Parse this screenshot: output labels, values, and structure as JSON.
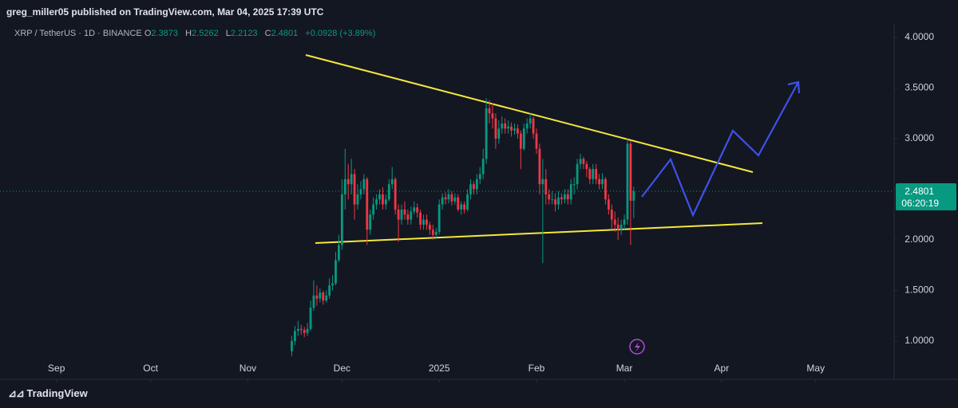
{
  "header": {
    "title": "greg_miller05 published on TradingView.com, Mar 04, 2025 17:39 UTC"
  },
  "chart_data": {
    "type": "candlestick",
    "symbol": "XRP / TetherUS · 1D · BINANCE",
    "ohlc_labels": [
      "O",
      "H",
      "L",
      "C"
    ],
    "change": "+0.0928 (+3.89%)",
    "countdown": "06:20:19",
    "up_color": "#089981",
    "down_color": "#f23645",
    "x": [
      75,
      76,
      77,
      78,
      79,
      80,
      81,
      82,
      83,
      84,
      85,
      86,
      87,
      88,
      89,
      90,
      91,
      92,
      93,
      94,
      95,
      96,
      97,
      98,
      99,
      100,
      101,
      102,
      103,
      104,
      105,
      106,
      107,
      108,
      109,
      110,
      111,
      112,
      113,
      114,
      115,
      116,
      117,
      118,
      119,
      120,
      121,
      122,
      123,
      124,
      125,
      126,
      127,
      128,
      129,
      130,
      131,
      132,
      133,
      134,
      135,
      136,
      137,
      138,
      139,
      140,
      141,
      142,
      143,
      144,
      145,
      146,
      147,
      148,
      149,
      150,
      151,
      152,
      153,
      154,
      155,
      156,
      157,
      158,
      159,
      160,
      161,
      162,
      163,
      164,
      165,
      166,
      167,
      168,
      169,
      170,
      171,
      172,
      173,
      174,
      175,
      176,
      177,
      178,
      179,
      180,
      181,
      182,
      183,
      184
    ],
    "open": [
      0.9,
      1.0,
      1.1,
      1.12,
      1.11,
      1.08,
      1.12,
      1.33,
      1.45,
      1.42,
      1.48,
      1.4,
      1.45,
      1.55,
      1.57,
      1.8,
      1.95,
      2.45,
      2.6,
      2.55,
      2.65,
      2.35,
      2.45,
      2.5,
      2.6,
      2.1,
      2.25,
      2.35,
      2.4,
      2.45,
      2.35,
      2.4,
      2.55,
      2.6,
      2.3,
      2.2,
      2.3,
      2.25,
      2.2,
      2.28,
      2.32,
      2.27,
      2.15,
      2.2,
      2.15,
      2.1,
      2.05,
      2.08,
      2.35,
      2.42,
      2.4,
      2.45,
      2.38,
      2.42,
      2.3,
      2.35,
      2.3,
      2.45,
      2.55,
      2.5,
      2.6,
      2.65,
      2.8,
      3.3,
      3.25,
      3.2,
      3.0,
      3.1,
      3.15,
      3.1,
      3.12,
      3.08,
      3.1,
      3.05,
      2.9,
      3.1,
      3.15,
      3.2,
      3.05,
      2.9,
      2.55,
      2.6,
      2.45,
      2.4,
      2.4,
      2.35,
      2.42,
      2.4,
      2.45,
      2.4,
      2.55,
      2.55,
      2.75,
      2.8,
      2.75,
      2.7,
      2.6,
      2.7,
      2.6,
      2.55,
      2.6,
      2.4,
      2.3,
      2.2,
      2.15,
      2.1,
      2.15,
      2.2,
      2.95,
      2.3873
    ],
    "high": [
      1.05,
      1.15,
      1.2,
      1.16,
      1.14,
      1.18,
      1.4,
      1.6,
      1.55,
      1.52,
      1.5,
      1.5,
      1.62,
      1.65,
      1.88,
      2.05,
      2.6,
      2.9,
      2.75,
      2.8,
      2.7,
      2.55,
      2.58,
      2.65,
      2.62,
      2.3,
      2.42,
      2.45,
      2.5,
      2.52,
      2.45,
      2.6,
      2.72,
      2.62,
      2.35,
      2.35,
      2.38,
      2.3,
      2.33,
      2.38,
      2.36,
      2.3,
      2.25,
      2.25,
      2.18,
      2.15,
      2.12,
      2.4,
      2.46,
      2.47,
      2.5,
      2.48,
      2.46,
      2.45,
      2.38,
      2.38,
      2.5,
      2.6,
      2.58,
      2.65,
      2.72,
      2.9,
      3.4,
      3.38,
      3.35,
      3.25,
      3.18,
      3.22,
      3.2,
      3.18,
      3.16,
      3.15,
      3.14,
      3.08,
      3.15,
      3.2,
      3.25,
      3.22,
      3.1,
      2.95,
      2.8,
      2.7,
      2.5,
      2.48,
      2.46,
      2.48,
      2.46,
      2.5,
      2.5,
      2.6,
      2.62,
      2.8,
      2.85,
      2.82,
      2.78,
      2.72,
      2.75,
      2.75,
      2.65,
      2.66,
      2.62,
      2.45,
      2.35,
      2.28,
      2.22,
      2.2,
      2.25,
      3.0,
      2.98,
      2.5262
    ],
    "low": [
      0.85,
      0.96,
      1.05,
      1.06,
      1.04,
      1.05,
      1.1,
      1.3,
      1.35,
      1.38,
      1.36,
      1.38,
      1.42,
      1.5,
      1.55,
      1.78,
      1.9,
      2.3,
      2.4,
      2.45,
      2.2,
      2.3,
      2.4,
      2.45,
      1.95,
      2.05,
      2.2,
      2.3,
      2.35,
      2.3,
      2.3,
      2.38,
      2.5,
      2.25,
      1.98,
      2.15,
      2.2,
      2.15,
      2.15,
      2.25,
      2.22,
      2.1,
      2.1,
      2.1,
      2.05,
      2.0,
      2.02,
      2.05,
      2.3,
      2.35,
      2.36,
      2.34,
      2.35,
      2.28,
      2.25,
      2.26,
      2.28,
      2.4,
      2.45,
      2.45,
      2.55,
      2.6,
      2.75,
      3.15,
      3.1,
      2.9,
      2.95,
      3.05,
      3.05,
      3.05,
      3.02,
      3.04,
      3.0,
      2.7,
      2.88,
      3.05,
      3.1,
      3.0,
      2.85,
      2.45,
      1.77,
      2.35,
      2.35,
      2.35,
      2.28,
      2.3,
      2.35,
      2.36,
      2.35,
      2.35,
      2.45,
      2.5,
      2.7,
      2.7,
      2.62,
      2.55,
      2.55,
      2.55,
      2.5,
      2.5,
      2.35,
      2.25,
      2.1,
      2.08,
      2.0,
      2.05,
      2.1,
      2.15,
      1.95,
      2.2123
    ],
    "close": [
      1.0,
      1.1,
      1.12,
      1.11,
      1.08,
      1.12,
      1.33,
      1.45,
      1.42,
      1.48,
      1.4,
      1.45,
      1.55,
      1.57,
      1.8,
      1.95,
      2.45,
      2.6,
      2.55,
      2.65,
      2.35,
      2.45,
      2.5,
      2.6,
      2.1,
      2.25,
      2.35,
      2.4,
      2.45,
      2.35,
      2.4,
      2.55,
      2.6,
      2.3,
      2.2,
      2.3,
      2.25,
      2.2,
      2.28,
      2.32,
      2.27,
      2.15,
      2.2,
      2.15,
      2.1,
      2.05,
      2.08,
      2.35,
      2.42,
      2.4,
      2.45,
      2.38,
      2.42,
      2.3,
      2.35,
      2.3,
      2.45,
      2.55,
      2.5,
      2.6,
      2.65,
      2.8,
      3.3,
      3.25,
      3.2,
      3.0,
      3.1,
      3.15,
      3.1,
      3.12,
      3.08,
      3.1,
      3.05,
      2.9,
      3.1,
      3.15,
      3.2,
      3.05,
      2.9,
      2.55,
      2.6,
      2.45,
      2.4,
      2.4,
      2.35,
      2.42,
      2.4,
      2.45,
      2.4,
      2.55,
      2.55,
      2.75,
      2.8,
      2.75,
      2.7,
      2.6,
      2.7,
      2.6,
      2.55,
      2.6,
      2.4,
      2.3,
      2.2,
      2.15,
      2.1,
      2.15,
      2.2,
      2.95,
      2.3873,
      2.4801
    ],
    "xlim": [
      -18,
      267
    ],
    "xticks": [
      {
        "value": 0,
        "label": "Sep"
      },
      {
        "value": 30,
        "label": "Oct"
      },
      {
        "value": 61,
        "label": "Nov"
      },
      {
        "value": 91,
        "label": "Dec"
      },
      {
        "value": 122,
        "label": "2025"
      },
      {
        "value": 153,
        "label": "Feb"
      },
      {
        "value": 181,
        "label": "Mar"
      },
      {
        "value": 212,
        "label": "Apr"
      },
      {
        "value": 242,
        "label": "May"
      }
    ],
    "ylim": [
      0.622,
      4.134
    ],
    "yticks": [
      {
        "value": 1,
        "label": "1.0000"
      },
      {
        "value": 1.5,
        "label": "1.5000"
      },
      {
        "value": 2,
        "label": "2.0000"
      },
      {
        "value": 2.5,
        "label": "2.5000"
      },
      {
        "value": 3,
        "label": "3.0000"
      },
      {
        "value": 3.5,
        "label": "3.5000"
      },
      {
        "value": 4,
        "label": "4.0000"
      }
    ]
  },
  "footer": {
    "brand": "TradingView"
  }
}
